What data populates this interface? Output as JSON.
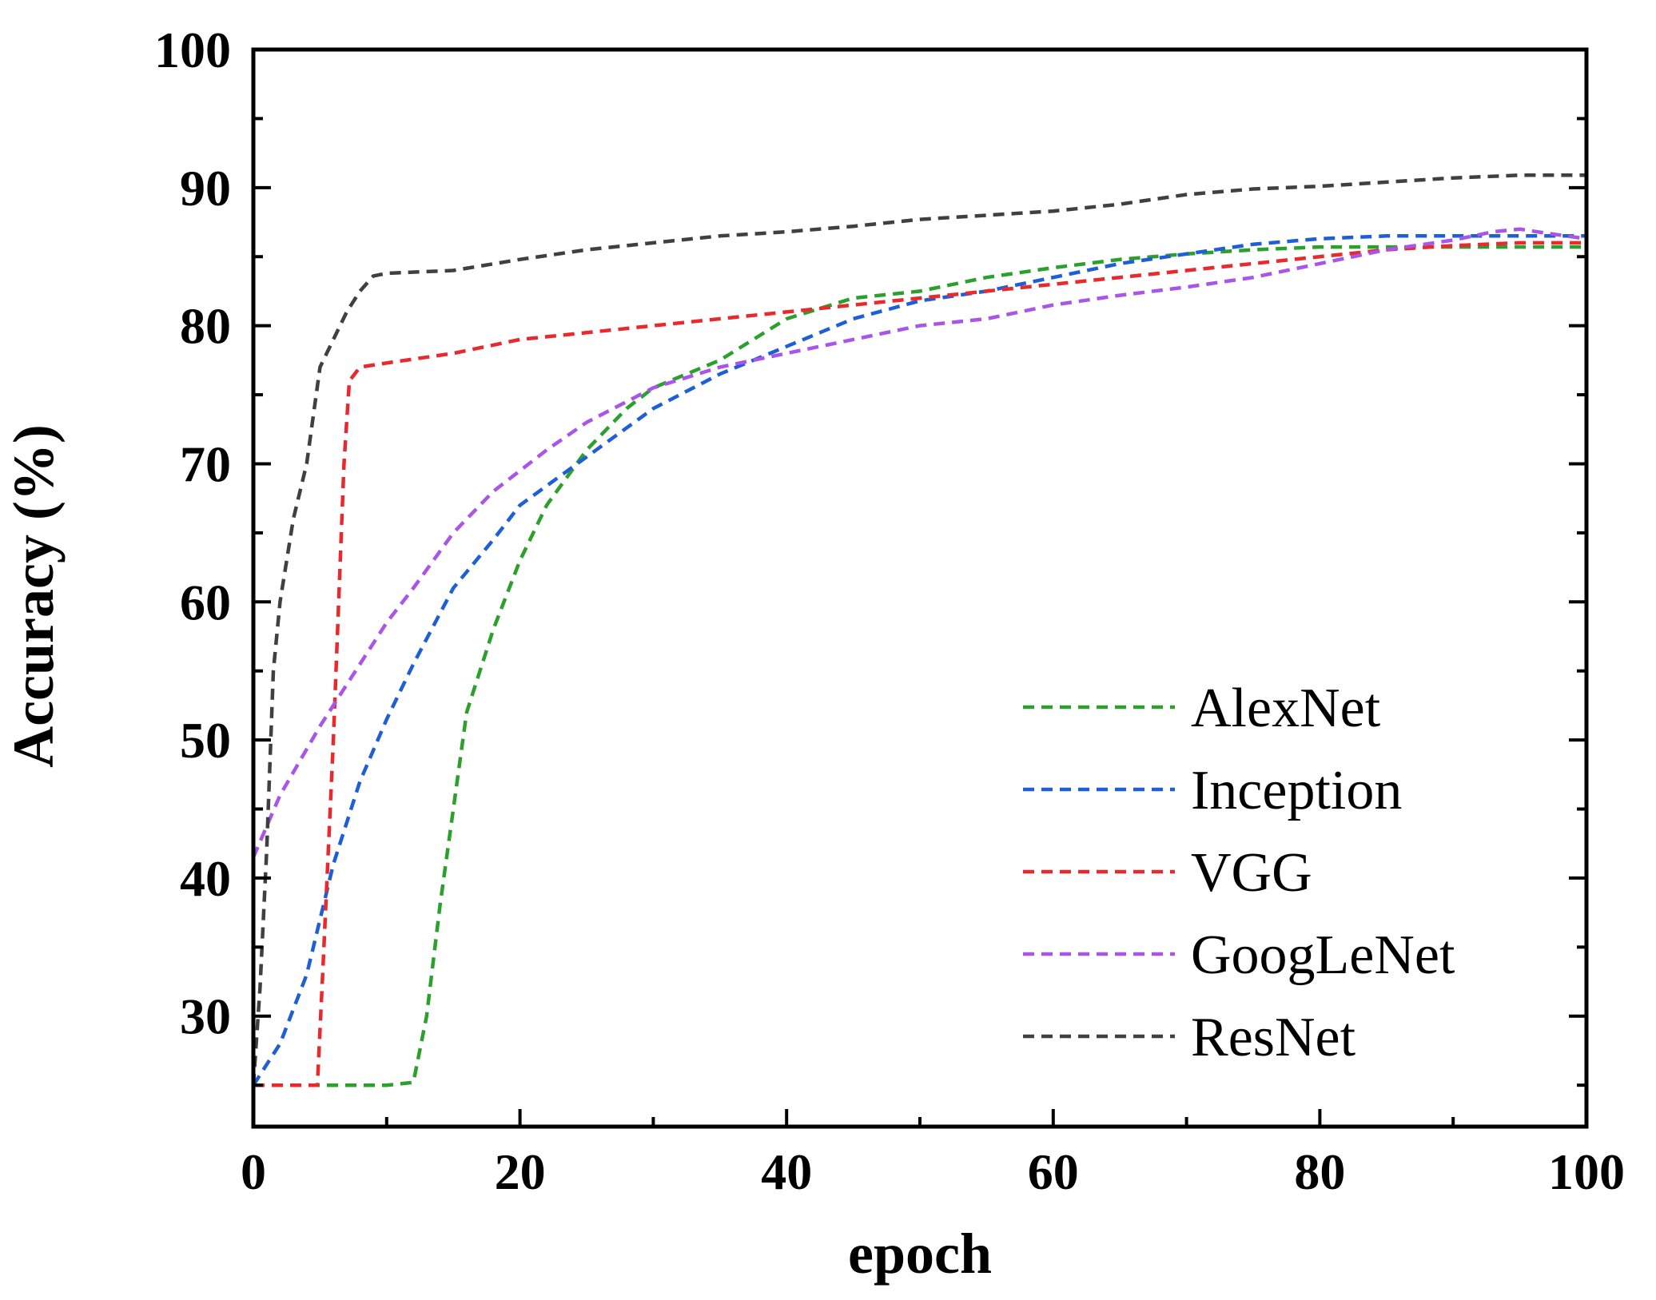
{
  "chart_data": {
    "type": "line",
    "title": "",
    "xlabel": "epoch",
    "ylabel": "Accuracy (%)",
    "xlim": [
      0,
      100
    ],
    "ylim": [
      22,
      100
    ],
    "xticks": [
      0,
      20,
      40,
      60,
      80,
      100
    ],
    "yticks": [
      30,
      40,
      50,
      60,
      70,
      80,
      90,
      100
    ],
    "xtick_labels": [
      "0",
      "20",
      "40",
      "60",
      "80",
      "100"
    ],
    "ytick_labels": [
      "30",
      "40",
      "50",
      "60",
      "70",
      "80",
      "90",
      "100"
    ],
    "grid": false,
    "legend_position": "lower-right",
    "series": [
      {
        "name": "AlexNet",
        "color": "#2ca02c",
        "x": [
          0,
          5,
          10,
          12,
          13,
          14,
          15,
          16,
          18,
          20,
          22,
          25,
          28,
          30,
          35,
          40,
          45,
          50,
          55,
          60,
          65,
          70,
          75,
          80,
          85,
          90,
          95,
          100
        ],
        "y": [
          25,
          25,
          25,
          25.2,
          30,
          38,
          45,
          52,
          58,
          63,
          67,
          71,
          74,
          75.5,
          77.5,
          80.5,
          82,
          82.5,
          83.5,
          84.2,
          84.8,
          85.2,
          85.5,
          85.7,
          85.7,
          85.7,
          85.7,
          85.7
        ]
      },
      {
        "name": "Inception",
        "color": "#1f5fd6",
        "x": [
          0,
          2,
          4,
          6,
          8,
          10,
          12,
          15,
          18,
          20,
          25,
          30,
          35,
          40,
          45,
          50,
          55,
          60,
          65,
          70,
          75,
          80,
          85,
          90,
          95,
          100
        ],
        "y": [
          25,
          28,
          33,
          41,
          47,
          51.5,
          55.5,
          61,
          64.5,
          67,
          70.5,
          74,
          76.5,
          78.5,
          80.5,
          81.8,
          82.5,
          83.5,
          84.5,
          85.2,
          85.9,
          86.3,
          86.5,
          86.5,
          86.5,
          86.5
        ]
      },
      {
        "name": "VGG",
        "color": "#e8292d",
        "x": [
          0,
          2,
          4,
          4.8,
          5.2,
          6,
          6.8,
          7.2,
          8,
          10,
          15,
          20,
          25,
          30,
          35,
          40,
          45,
          50,
          55,
          60,
          65,
          70,
          75,
          80,
          85,
          90,
          95,
          100
        ],
        "y": [
          25,
          25,
          25,
          25,
          33,
          50,
          70,
          76,
          77,
          77.3,
          78,
          79,
          79.5,
          80,
          80.5,
          81,
          81.5,
          82,
          82.5,
          83,
          83.5,
          84,
          84.5,
          85,
          85.5,
          85.8,
          86,
          86
        ]
      },
      {
        "name": "GoogLeNet",
        "color": "#a855e8",
        "x": [
          0,
          2,
          5,
          8,
          10,
          12,
          15,
          18,
          20,
          22,
          25,
          28,
          30,
          35,
          40,
          45,
          50,
          55,
          60,
          65,
          70,
          75,
          80,
          85,
          90,
          93,
          95,
          97,
          100
        ],
        "y": [
          41.5,
          46,
          51,
          55.5,
          58.5,
          61,
          65,
          68,
          69.5,
          71,
          73,
          74.5,
          75.5,
          77,
          78,
          79,
          80,
          80.5,
          81.5,
          82.2,
          82.8,
          83.5,
          84.5,
          85.5,
          86.2,
          86.8,
          87,
          86.7,
          86.3
        ]
      },
      {
        "name": "ResNet",
        "color": "#404040",
        "x": [
          0,
          0.5,
          1,
          1.5,
          2,
          3,
          4,
          5,
          6,
          7,
          8,
          9,
          10,
          15,
          20,
          25,
          30,
          35,
          40,
          45,
          50,
          55,
          60,
          65,
          70,
          75,
          80,
          85,
          90,
          95,
          100
        ],
        "y": [
          25,
          32,
          42,
          55,
          60,
          66,
          70,
          77,
          79,
          81,
          82.5,
          83.6,
          83.8,
          84,
          84.8,
          85.5,
          86,
          86.5,
          86.8,
          87.2,
          87.7,
          88,
          88.3,
          88.8,
          89.5,
          89.9,
          90.1,
          90.4,
          90.7,
          90.9,
          90.9
        ]
      }
    ]
  }
}
